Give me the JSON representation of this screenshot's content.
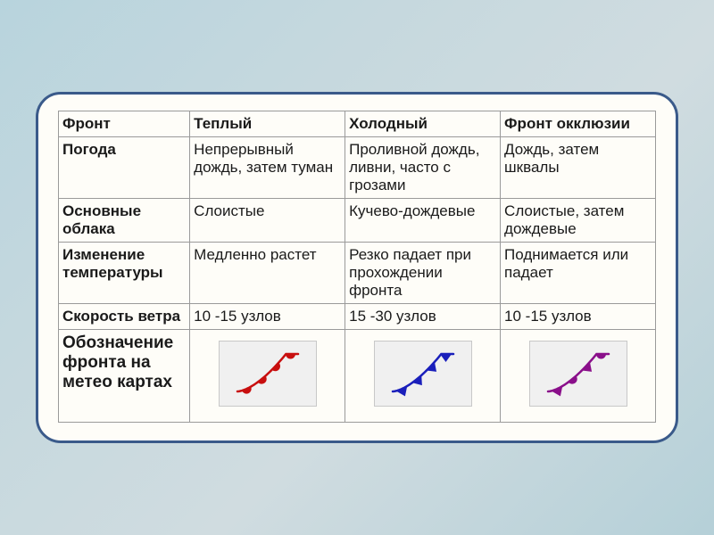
{
  "table": {
    "columns": [
      "Фронт",
      "Теплый",
      "Холодный",
      "Фронт окклюзии"
    ],
    "col_widths": [
      "22%",
      "26%",
      "26%",
      "26%"
    ],
    "rows": [
      {
        "label": "Погода",
        "cells": [
          "Непрерывный дождь, затем туман",
          "Проливной дождь, ливни, часто с грозами",
          "Дождь, затем шквалы"
        ]
      },
      {
        "label": "Основные облака",
        "cells": [
          "Слоистые",
          "Кучево-дождевые",
          "Слоистые, затем дождевые"
        ]
      },
      {
        "label": "Изменение температуры",
        "cells": [
          "Медленно растет",
          "Резко падает при прохождении фронта",
          "Поднимается или падает"
        ]
      },
      {
        "label": "Скорость ветра",
        "cells": [
          "10 -15 узлов",
          "15 -30 узлов",
          "10 -15 узлов"
        ]
      },
      {
        "label": "Обозначение фронта на метео картах",
        "symbols": [
          "warm",
          "cold",
          "occluded"
        ]
      }
    ],
    "styling": {
      "background_color": "#fefdf8",
      "border_color": "#9a9a9a",
      "font_size": 17,
      "header_font_weight": "bold",
      "label_font_weight": "bold",
      "symbol_box_bg": "#f0f0f0",
      "symbol_box_border": "#c8c8c8"
    },
    "front_symbols": {
      "warm": {
        "type": "warm-front",
        "line_color": "#c80f0f",
        "marker_fill": "#c80f0f",
        "marker_shape": "semicircle",
        "marker_count": 4,
        "line_width": 2.5
      },
      "cold": {
        "type": "cold-front",
        "line_color": "#1a1fbb",
        "marker_fill": "#1a1fbb",
        "marker_shape": "triangle",
        "marker_count": 4,
        "line_width": 2.5
      },
      "occluded": {
        "type": "occluded-front",
        "line_color": "#8a0f8a",
        "marker_fill": "#8a0f8a",
        "marker_shape": "alternating",
        "marker_count": 4,
        "line_width": 2.5
      }
    }
  }
}
